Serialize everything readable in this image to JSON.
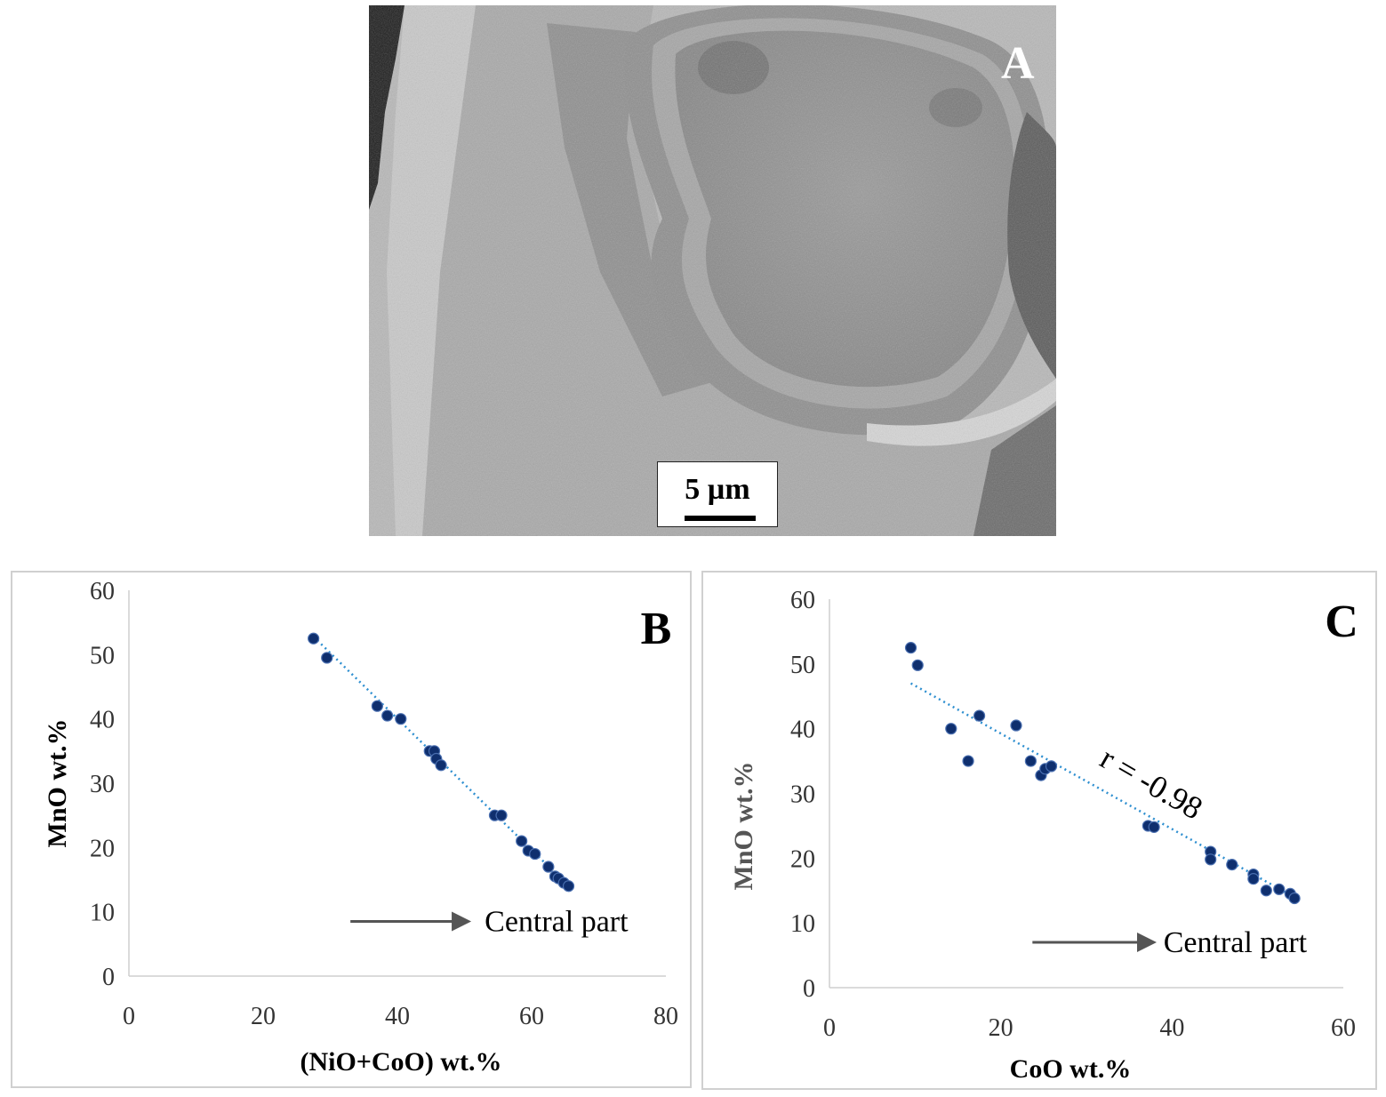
{
  "figure": {
    "panel_a": {
      "letter": "A",
      "scalebar_label": "5 µm"
    }
  },
  "chart_data": [
    {
      "id": "B",
      "type": "scatter",
      "panel_letter": "B",
      "xlabel": "(NiO+CoO) wt.%",
      "ylabel": "MnO wt.%",
      "xlim": [
        0,
        80
      ],
      "ylim": [
        0,
        60
      ],
      "xticks": [
        0,
        20,
        40,
        60,
        80
      ],
      "yticks": [
        0,
        10,
        20,
        30,
        40,
        50,
        60
      ],
      "grid": false,
      "point_color": "#0f2f6e",
      "trendline_color": "#2e8fd0",
      "trendline": {
        "x1": 27.5,
        "y1": 52.8,
        "x2": 66.0,
        "y2": 13.5
      },
      "points": [
        [
          27.5,
          52.5
        ],
        [
          29.5,
          49.5
        ],
        [
          37.0,
          42.0
        ],
        [
          38.5,
          40.5
        ],
        [
          40.5,
          40.0
        ],
        [
          44.8,
          35.0
        ],
        [
          45.5,
          35.0
        ],
        [
          45.8,
          33.8
        ],
        [
          46.5,
          32.8
        ],
        [
          54.5,
          25.0
        ],
        [
          55.5,
          25.0
        ],
        [
          58.5,
          21.0
        ],
        [
          59.5,
          19.5
        ],
        [
          60.5,
          19.0
        ],
        [
          62.5,
          17.0
        ],
        [
          63.5,
          15.5
        ],
        [
          64.0,
          15.2
        ],
        [
          64.8,
          14.5
        ],
        [
          65.5,
          14.0
        ]
      ],
      "annotation": {
        "text": "Central part",
        "x": 53,
        "y": 8.5,
        "arrow_from_x": 33,
        "arrow_to_x": 51
      }
    },
    {
      "id": "C",
      "type": "scatter",
      "panel_letter": "C",
      "xlabel": "CoO wt.%",
      "ylabel": "MnO wt.%",
      "xlim": [
        0,
        60
      ],
      "ylim": [
        0,
        60
      ],
      "xticks": [
        0,
        20,
        40,
        60
      ],
      "yticks": [
        0,
        10,
        20,
        30,
        40,
        50,
        60
      ],
      "grid": false,
      "point_color": "#0f2f6e",
      "trendline_color": "#2e8fd0",
      "trendline": {
        "x1": 9.5,
        "y1": 47.0,
        "x2": 54.5,
        "y2": 13.8
      },
      "points": [
        [
          9.5,
          52.5
        ],
        [
          10.3,
          49.8
        ],
        [
          14.2,
          40.0
        ],
        [
          16.2,
          35.0
        ],
        [
          17.5,
          42.0
        ],
        [
          21.8,
          40.5
        ],
        [
          23.5,
          35.0
        ],
        [
          24.7,
          32.8
        ],
        [
          25.2,
          33.8
        ],
        [
          25.9,
          34.2
        ],
        [
          37.2,
          25.0
        ],
        [
          37.9,
          24.8
        ],
        [
          44.5,
          21.0
        ],
        [
          44.5,
          19.8
        ],
        [
          47.0,
          19.0
        ],
        [
          49.5,
          17.5
        ],
        [
          49.5,
          16.8
        ],
        [
          51.0,
          15.0
        ],
        [
          52.5,
          15.2
        ],
        [
          53.8,
          14.5
        ],
        [
          54.3,
          13.8
        ]
      ],
      "annotation": {
        "text": "Central part",
        "x": 39,
        "y": 7.0,
        "arrow_from_x": 23.7,
        "arrow_to_x": 38.2
      },
      "correlation_label": "r = -0.98"
    }
  ]
}
